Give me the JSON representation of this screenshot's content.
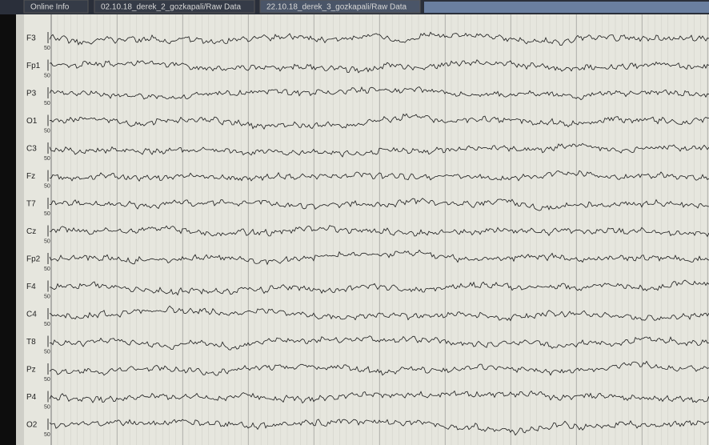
{
  "tabs": [
    "Online Info",
    "02.10.18_derek_2_gozkapali/Raw Data",
    "22.10.18_derek_3_gozkapali/Raw Data"
  ],
  "channels": [
    {
      "label": "F3",
      "scale": "50"
    },
    {
      "label": "Fp1",
      "scale": "50"
    },
    {
      "label": "P3",
      "scale": "50"
    },
    {
      "label": "O1",
      "scale": "50"
    },
    {
      "label": "C3",
      "scale": "50"
    },
    {
      "label": "Fz",
      "scale": "50"
    },
    {
      "label": "T7",
      "scale": "50"
    },
    {
      "label": "Cz",
      "scale": "50"
    },
    {
      "label": "Fp2",
      "scale": "50"
    },
    {
      "label": "F4",
      "scale": "50"
    },
    {
      "label": "C4",
      "scale": "50"
    },
    {
      "label": "T8",
      "scale": "50"
    },
    {
      "label": "Pz",
      "scale": "50"
    },
    {
      "label": "P4",
      "scale": "50"
    },
    {
      "label": "O2",
      "scale": "50"
    }
  ]
}
